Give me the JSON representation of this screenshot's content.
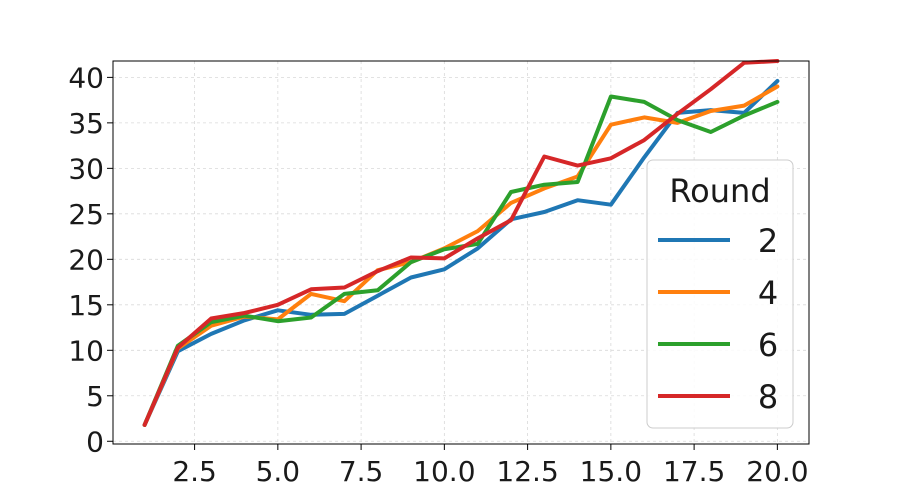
{
  "chart_data": {
    "type": "line",
    "title": "",
    "xlabel": "",
    "ylabel": "",
    "xlim": [
      0.05,
      20.95
    ],
    "ylim": [
      -0.3,
      41.8
    ],
    "x_ticks": [
      2.5,
      5.0,
      7.5,
      10.0,
      12.5,
      15.0,
      17.5,
      20.0
    ],
    "x_tick_labels": [
      "2.5",
      "5.0",
      "7.5",
      "10.0",
      "12.5",
      "15.0",
      "17.5",
      "20.0"
    ],
    "y_ticks": [
      0,
      5,
      10,
      15,
      20,
      25,
      30,
      35,
      40
    ],
    "y_tick_labels": [
      "0",
      "5",
      "10",
      "15",
      "20",
      "25",
      "30",
      "35",
      "40"
    ],
    "grid": true,
    "legend": {
      "title": "Round",
      "placement": "right"
    },
    "x": [
      1,
      2,
      3,
      4,
      5,
      6,
      7,
      8,
      9,
      10,
      11,
      12,
      13,
      14,
      15,
      16,
      17,
      18,
      19,
      20
    ],
    "series": [
      {
        "name": "2",
        "color": "#1f77b4",
        "values": [
          1.8,
          9.9,
          11.8,
          13.3,
          14.4,
          13.9,
          14.0,
          16.0,
          18.0,
          18.9,
          21.2,
          24.4,
          25.2,
          26.5,
          26.0,
          31.2,
          36.1,
          36.4,
          36.1,
          39.6
        ]
      },
      {
        "name": "4",
        "color": "#ff7f0e",
        "values": [
          1.8,
          10.2,
          12.7,
          13.7,
          13.4,
          16.2,
          15.4,
          18.8,
          19.7,
          21.2,
          23.1,
          26.2,
          27.8,
          29.1,
          34.8,
          35.6,
          35.0,
          36.3,
          36.9,
          39.0
        ]
      },
      {
        "name": "6",
        "color": "#2ca02c",
        "values": [
          1.8,
          10.5,
          13.1,
          13.8,
          13.2,
          13.6,
          16.2,
          16.6,
          19.7,
          21.1,
          21.7,
          27.4,
          28.2,
          28.5,
          37.9,
          37.3,
          35.3,
          34.0,
          35.8,
          37.3
        ]
      },
      {
        "name": "8",
        "color": "#d62728",
        "values": [
          1.8,
          10.3,
          13.5,
          14.1,
          15.0,
          16.7,
          16.9,
          18.7,
          20.2,
          20.1,
          22.3,
          24.3,
          31.3,
          30.3,
          31.1,
          33.1,
          36.0,
          38.7,
          41.6,
          41.8
        ]
      }
    ]
  }
}
